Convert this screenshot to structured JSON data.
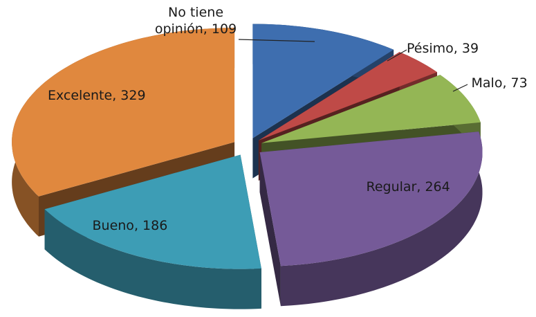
{
  "chart_data": {
    "type": "pie3d",
    "categories": [
      "No tiene opinión",
      "Pésimo",
      "Malo",
      "Regular",
      "Bueno",
      "Excelente"
    ],
    "values": [
      109,
      39,
      73,
      264,
      186,
      329
    ],
    "colors": [
      "#3e6eaf",
      "#bf4a47",
      "#94b655",
      "#755a98",
      "#3d9db5",
      "#e0883e"
    ]
  }
}
